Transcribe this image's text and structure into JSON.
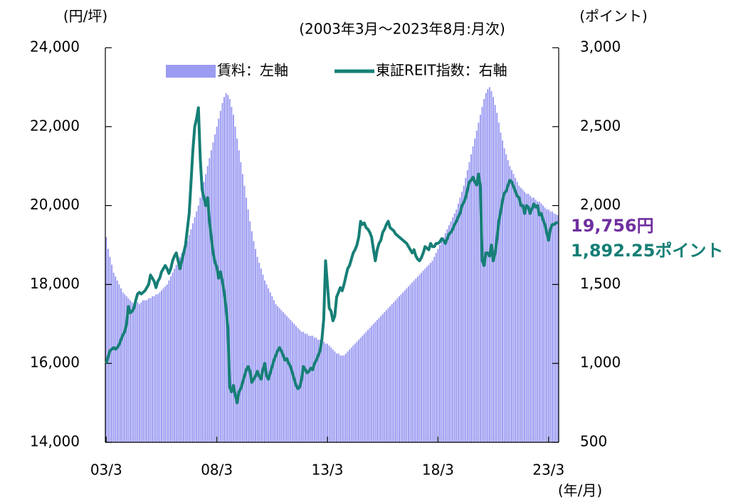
{
  "chart_data": {
    "type": "bar-line",
    "subtitle": "(2003年3月～2023年8月:月次)",
    "y_label": "(円/坪)",
    "y2_label": "(ポイント)",
    "x_label": "(年/月)",
    "annotations": [
      "19,756円",
      "1,892.25ポイント"
    ],
    "legend": "top",
    "categories": [
      "03/3",
      null,
      null,
      null,
      null,
      null,
      null,
      null,
      null,
      null,
      null,
      null,
      null,
      null,
      null,
      null,
      null,
      null,
      null,
      null,
      null,
      null,
      null,
      null,
      null,
      null,
      null,
      null,
      null,
      null,
      null,
      null,
      null,
      null,
      null,
      null,
      null,
      null,
      null,
      null,
      null,
      null,
      null,
      null,
      null,
      null,
      null,
      null,
      null,
      null,
      null,
      null,
      null,
      null,
      null,
      null,
      null,
      null,
      null,
      null,
      "08/3",
      null,
      null,
      null,
      null,
      null,
      null,
      null,
      null,
      null,
      null,
      null,
      null,
      null,
      null,
      null,
      null,
      null,
      null,
      null,
      null,
      null,
      null,
      null,
      null,
      null,
      null,
      null,
      null,
      null,
      null,
      null,
      null,
      null,
      null,
      null,
      null,
      null,
      null,
      null,
      null,
      null,
      null,
      null,
      null,
      null,
      null,
      null,
      null,
      null,
      null,
      null,
      null,
      null,
      null,
      null,
      null,
      null,
      null,
      null,
      "13/3",
      null,
      null,
      null,
      null,
      null,
      null,
      null,
      null,
      null,
      null,
      null,
      null,
      null,
      null,
      null,
      null,
      null,
      null,
      null,
      null,
      null,
      null,
      null,
      null,
      null,
      null,
      null,
      null,
      null,
      null,
      null,
      null,
      null,
      null,
      null,
      null,
      null,
      null,
      null,
      null,
      null,
      null,
      null,
      null,
      null,
      null,
      null,
      null,
      null,
      null,
      null,
      null,
      null,
      null,
      null,
      null,
      null,
      null,
      null,
      "18/3",
      null,
      null,
      null,
      null,
      null,
      null,
      null,
      null,
      null,
      null,
      null,
      null,
      null,
      null,
      null,
      null,
      null,
      null,
      null,
      null,
      null,
      null,
      null,
      null,
      null,
      null,
      null,
      null,
      null,
      null,
      null,
      null,
      null,
      null,
      null,
      null,
      null,
      null,
      null,
      null,
      null,
      null,
      null,
      null,
      null,
      null,
      null,
      null,
      null,
      null,
      null,
      null,
      null,
      null,
      null,
      null,
      null,
      null,
      null,
      "23/3",
      null,
      null,
      null,
      null,
      null
    ],
    "series": [
      {
        "name": "賃料：左軸",
        "type": "bar",
        "color": "#9b9bf2",
        "values": [
          19200,
          18900,
          18700,
          18500,
          18300,
          18200,
          18100,
          18000,
          17900,
          17800,
          17750,
          17700,
          17650,
          17600,
          17550,
          17500,
          17500,
          17550,
          17500,
          17550,
          17600,
          17600,
          17600,
          17650,
          17650,
          17700,
          17700,
          17750,
          17750,
          17800,
          17850,
          17900,
          17950,
          18000,
          18100,
          18200,
          18300,
          18400,
          18500,
          18600,
          18700,
          18800,
          18900,
          19000,
          19100,
          19250,
          19400,
          19550,
          19700,
          19850,
          20000,
          20200,
          20400,
          20600,
          20800,
          21000,
          21200,
          21400,
          21600,
          21800,
          22000,
          22200,
          22400,
          22600,
          22750,
          22850,
          22800,
          22700,
          22500,
          22300,
          22000,
          21700,
          21400,
          21100,
          20800,
          20500,
          20200,
          19900,
          19600,
          19350,
          19100,
          18900,
          18700,
          18550,
          18400,
          18250,
          18100,
          18000,
          17900,
          17800,
          17700,
          17600,
          17500,
          17450,
          17400,
          17350,
          17300,
          17250,
          17200,
          17150,
          17100,
          17050,
          17000,
          16950,
          16900,
          16850,
          16800,
          16800,
          16750,
          16750,
          16700,
          16700,
          16700,
          16650,
          16650,
          16600,
          16600,
          16550,
          16550,
          16500,
          16500,
          16450,
          16400,
          16350,
          16300,
          16250,
          16250,
          16200,
          16200,
          16200,
          16250,
          16300,
          16350,
          16400,
          16450,
          16500,
          16550,
          16600,
          16650,
          16700,
          16750,
          16800,
          16850,
          16900,
          16950,
          17000,
          17050,
          17100,
          17150,
          17200,
          17250,
          17300,
          17350,
          17400,
          17450,
          17500,
          17550,
          17600,
          17650,
          17700,
          17750,
          17800,
          17850,
          17900,
          17950,
          18000,
          18050,
          18100,
          18150,
          18200,
          18250,
          18300,
          18350,
          18400,
          18450,
          18500,
          18550,
          18600,
          18700,
          18800,
          18900,
          19000,
          19100,
          19200,
          19300,
          19400,
          19500,
          19600,
          19700,
          19800,
          19900,
          20050,
          20200,
          20350,
          20500,
          20700,
          20900,
          21100,
          21300,
          21500,
          21700,
          21900,
          22100,
          22300,
          22500,
          22700,
          22850,
          22950,
          23000,
          22900,
          22750,
          22550,
          22350,
          22100,
          21850,
          21650,
          21450,
          21300,
          21150,
          21000,
          20900,
          20800,
          20700,
          20600,
          20500,
          20450,
          20400,
          20350,
          20300,
          20300,
          20250,
          20200,
          20200,
          20150,
          20100,
          20100,
          20050,
          20000,
          19950,
          19900,
          19900,
          19850,
          19850,
          19800,
          19780,
          19756
        ]
      },
      {
        "name": "東証REIT指数：右軸",
        "type": "line",
        "axis": "y2",
        "color": "#167f76",
        "values": [
          1000,
          1040,
          1080,
          1090,
          1100,
          1090,
          1100,
          1120,
          1150,
          1180,
          1200,
          1250,
          1360,
          1320,
          1330,
          1350,
          1400,
          1440,
          1450,
          1440,
          1450,
          1460,
          1480,
          1500,
          1560,
          1540,
          1520,
          1480,
          1520,
          1540,
          1580,
          1600,
          1620,
          1600,
          1570,
          1600,
          1650,
          1680,
          1700,
          1650,
          1600,
          1650,
          1700,
          1750,
          1850,
          1950,
          2150,
          2350,
          2500,
          2550,
          2620,
          2300,
          2100,
          2050,
          2000,
          2050,
          1900,
          1800,
          1700,
          1640,
          1610,
          1540,
          1580,
          1520,
          1450,
          1350,
          1220,
          850,
          820,
          860,
          800,
          750,
          820,
          840,
          880,
          920,
          960,
          980,
          950,
          880,
          900,
          920,
          950,
          920,
          900,
          960,
          1000,
          920,
          900,
          940,
          980,
          1020,
          1050,
          1080,
          1100,
          1080,
          1050,
          1020,
          1030,
          1000,
          980,
          940,
          900,
          860,
          840,
          850,
          900,
          980,
          960,
          940,
          950,
          970,
          960,
          1000,
          1020,
          1050,
          1080,
          1150,
          1280,
          1650,
          1500,
          1350,
          1330,
          1270,
          1300,
          1420,
          1450,
          1480,
          1460,
          1500,
          1550,
          1600,
          1620,
          1660,
          1700,
          1720,
          1750,
          1800,
          1900,
          1880,
          1890,
          1860,
          1850,
          1830,
          1800,
          1720,
          1650,
          1720,
          1760,
          1780,
          1830,
          1850,
          1880,
          1900,
          1860,
          1850,
          1840,
          1820,
          1810,
          1800,
          1790,
          1780,
          1770,
          1760,
          1740,
          1720,
          1700,
          1720,
          1680,
          1660,
          1650,
          1670,
          1700,
          1740,
          1730,
          1720,
          1760,
          1740,
          1740,
          1760,
          1760,
          1770,
          1790,
          1780,
          1760,
          1790,
          1820,
          1830,
          1850,
          1880,
          1900,
          1930,
          1950,
          2000,
          2020,
          2050,
          2100,
          2150,
          2160,
          2180,
          2150,
          2130,
          2200,
          2120,
          1650,
          1620,
          1700,
          1700,
          1680,
          1750,
          1650,
          1700,
          1790,
          1900,
          1960,
          2030,
          2080,
          2090,
          2130,
          2160,
          2150,
          2120,
          2090,
          2060,
          2050,
          2000,
          2000,
          1950,
          2000,
          1990,
          1950,
          1980,
          2010,
          1990,
          2000,
          1940,
          1950,
          1910,
          1880,
          1830,
          1780,
          1850,
          1880,
          1880,
          1890,
          1892.25
        ]
      }
    ],
    "ylim": [
      14000,
      24000
    ],
    "yticks": [
      {
        "value": 14000,
        "label": "14,000"
      },
      {
        "value": 16000,
        "label": "16,000"
      },
      {
        "value": 18000,
        "label": "18,000"
      },
      {
        "value": 20000,
        "label": "20,000"
      },
      {
        "value": 22000,
        "label": "22,000"
      },
      {
        "value": 24000,
        "label": "24,000"
      }
    ],
    "y2lim": [
      500,
      3000
    ],
    "y2ticks": [
      500,
      {
        "value": 1000,
        "label": "1,000"
      },
      {
        "value": 1500,
        "label": "1,500"
      },
      {
        "value": 2000,
        "label": "2,000"
      },
      {
        "value": 2500,
        "label": "2,500"
      },
      {
        "value": 3000,
        "label": "3,000"
      }
    ],
    "grid": false
  }
}
